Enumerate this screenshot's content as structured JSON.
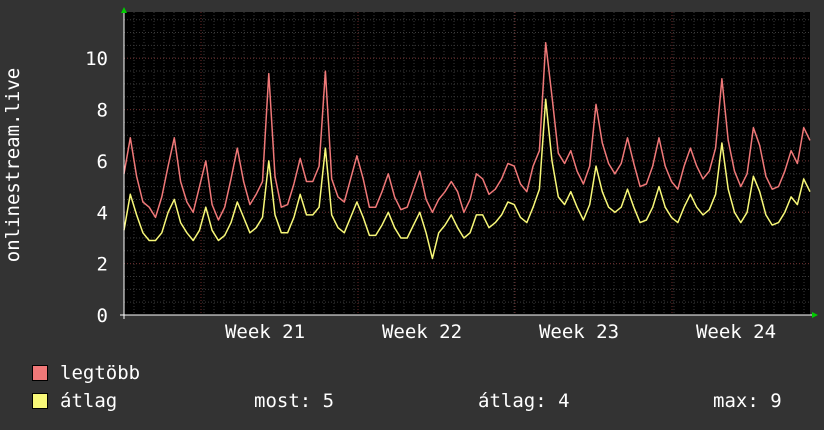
{
  "chart_data": {
    "type": "line",
    "ylabel": "onlinestream.live",
    "ylim": [
      0,
      11.8
    ],
    "y_ticks": [
      0,
      2,
      4,
      6,
      8,
      10
    ],
    "x_ticks": [
      "Week 21",
      "Week 22",
      "Week 23",
      "Week 24"
    ],
    "grid": true,
    "colors": {
      "background": "#333333",
      "plot_area": "#000000",
      "minor_grid": "#3a3a3a",
      "major_grid": "#6a2a2a",
      "axis": "#ffffff",
      "arrow": "#00cc00"
    },
    "series": [
      {
        "name": "legtöbb",
        "color": "#f07878",
        "values": [
          5.5,
          6.9,
          5.4,
          4.4,
          4.2,
          3.8,
          4.6,
          5.8,
          6.9,
          5.2,
          4.4,
          4.0,
          5.0,
          6.0,
          4.3,
          3.7,
          4.2,
          5.3,
          6.5,
          5.2,
          4.3,
          4.7,
          5.2,
          9.4,
          5.4,
          4.2,
          4.3,
          5.1,
          6.1,
          5.2,
          5.2,
          5.8,
          9.5,
          5.3,
          4.6,
          4.4,
          5.3,
          6.2,
          5.3,
          4.2,
          4.2,
          4.8,
          5.5,
          4.6,
          4.1,
          4.2,
          4.9,
          5.6,
          4.5,
          4.0,
          4.5,
          4.8,
          5.2,
          4.8,
          4.0,
          4.5,
          5.5,
          5.3,
          4.7,
          4.9,
          5.3,
          5.9,
          5.8,
          5.1,
          4.8,
          5.8,
          6.4,
          10.6,
          8.5,
          6.3,
          5.9,
          6.4,
          5.6,
          5.1,
          5.8,
          8.2,
          6.7,
          5.9,
          5.5,
          5.9,
          6.9,
          5.9,
          5.0,
          5.1,
          5.8,
          6.9,
          5.8,
          5.2,
          4.9,
          5.8,
          6.5,
          5.8,
          5.3,
          5.6,
          6.5,
          9.2,
          6.8,
          5.6,
          5.0,
          5.5,
          7.3,
          6.6,
          5.4,
          4.9,
          5.0,
          5.6,
          6.4,
          5.9,
          7.3,
          6.8
        ],
        "peaks_note": ""
      },
      {
        "name": "átlag",
        "color": "#f8f878",
        "values": [
          3.3,
          4.7,
          3.9,
          3.2,
          2.9,
          2.9,
          3.2,
          4.0,
          4.5,
          3.6,
          3.2,
          2.9,
          3.3,
          4.2,
          3.3,
          2.9,
          3.1,
          3.6,
          4.4,
          3.8,
          3.2,
          3.4,
          3.8,
          6.0,
          3.9,
          3.2,
          3.2,
          3.8,
          4.7,
          3.9,
          3.9,
          4.2,
          6.5,
          3.9,
          3.4,
          3.2,
          3.8,
          4.4,
          3.8,
          3.1,
          3.1,
          3.5,
          4.0,
          3.4,
          3.0,
          3.0,
          3.5,
          4.0,
          3.2,
          2.2,
          3.2,
          3.5,
          3.9,
          3.4,
          3.0,
          3.2,
          3.9,
          3.9,
          3.4,
          3.6,
          3.9,
          4.4,
          4.3,
          3.8,
          3.6,
          4.2,
          4.9,
          8.4,
          6.0,
          4.6,
          4.3,
          4.8,
          4.2,
          3.7,
          4.3,
          5.8,
          4.8,
          4.2,
          4.0,
          4.2,
          4.9,
          4.2,
          3.6,
          3.7,
          4.2,
          5.0,
          4.2,
          3.8,
          3.6,
          4.2,
          4.7,
          4.2,
          3.9,
          4.1,
          4.7,
          6.7,
          4.9,
          4.0,
          3.6,
          4.0,
          5.4,
          4.8,
          3.9,
          3.5,
          3.6,
          4.0,
          4.6,
          4.3,
          5.3,
          4.8
        ],
        "peaks_note": ""
      }
    ]
  },
  "legend": {
    "max_label": "legtöbb",
    "avg_label": "átlag"
  },
  "stats": {
    "now": "most: 5",
    "avg": "átlag: 4",
    "max": "max: 9"
  }
}
